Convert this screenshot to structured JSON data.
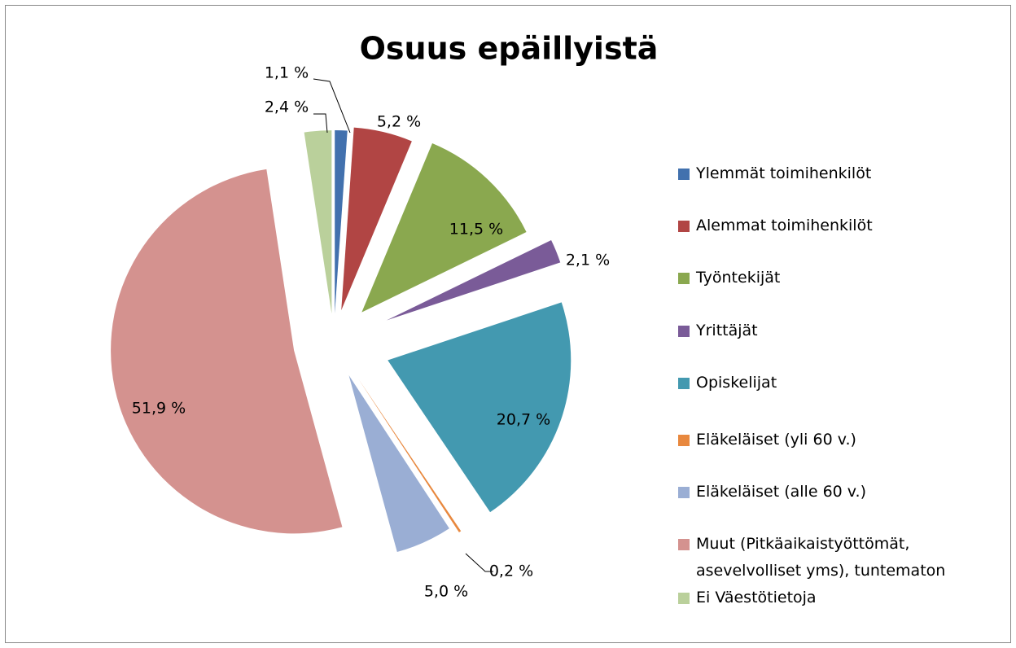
{
  "chart_data": {
    "type": "pie",
    "title": "Osuus epäillyistä",
    "categories": [
      "Ylemmät toimihenkilöt",
      "Alemmat toimihenkilöt",
      "Työntekijät",
      "Yrittäjät",
      "Opiskelijat",
      "Eläkeläiset (yli 60 v.)",
      "Eläkeläiset (alle 60 v.)",
      "Muut (Pitkäaikaistyöttömät, asevelvolliset yms), tuntematon",
      "Ei Väestötietoja"
    ],
    "values": [
      1.1,
      5.2,
      11.5,
      2.1,
      20.7,
      0.2,
      5.0,
      51.9,
      2.4
    ],
    "value_labels": [
      "1,1 %",
      "5,2 %",
      "11,5 %",
      "2,1 %",
      "20,7 %",
      "0,2 %",
      "5,0 %",
      "51,9 %",
      "2,4 %"
    ],
    "colors": [
      "#4271ae",
      "#b14544",
      "#8aa84f",
      "#7a5b98",
      "#4399b0",
      "#e8883e",
      "#9aaed4",
      "#d4928f",
      "#bad09b"
    ],
    "legend": "right"
  }
}
